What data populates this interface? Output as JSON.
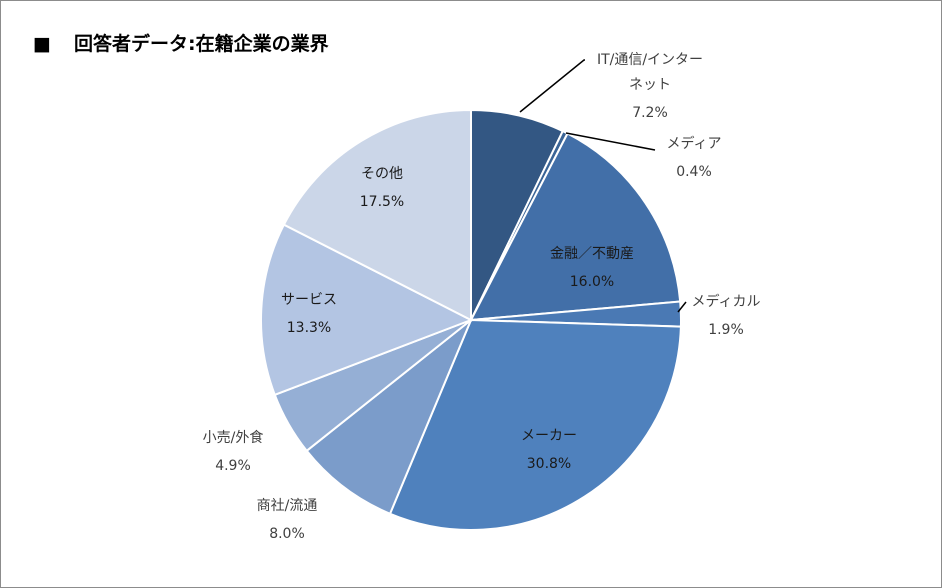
{
  "title_marker": "■",
  "title": "回答者データ:在籍企業の業界",
  "chart_data": {
    "type": "pie",
    "title": "回答者データ:在籍企業の業界",
    "unit": "%",
    "slices": [
      {
        "name": "IT/通信/インターネット",
        "label_lines": [
          "IT/通信/インター",
          "ネット"
        ],
        "value": 7.2,
        "value_label": "7.2%",
        "color": "#335783"
      },
      {
        "name": "メディア",
        "label_lines": [
          "メディア"
        ],
        "value": 0.4,
        "value_label": "0.4%",
        "color": "#3a6496"
      },
      {
        "name": "金融/不動産",
        "label_lines": [
          "金融／不動産"
        ],
        "value": 16.0,
        "value_label": "16.0%",
        "color": "#426fa8"
      },
      {
        "name": "メディカル",
        "label_lines": [
          "メディカル"
        ],
        "value": 1.9,
        "value_label": "1.9%",
        "color": "#4a79b4"
      },
      {
        "name": "メーカー",
        "label_lines": [
          "メーカー"
        ],
        "value": 30.8,
        "value_label": "30.8%",
        "color": "#4f81bd"
      },
      {
        "name": "商社/流通",
        "label_lines": [
          "商社/流通"
        ],
        "value": 8.0,
        "value_label": "8.0%",
        "color": "#7b9cca"
      },
      {
        "name": "小売/外食",
        "label_lines": [
          "小売/外食"
        ],
        "value": 4.9,
        "value_label": "4.9%",
        "color": "#95afd5"
      },
      {
        "name": "サービス",
        "label_lines": [
          "サービス"
        ],
        "value": 13.3,
        "value_label": "13.3%",
        "color": "#b3c5e3"
      },
      {
        "name": "その他",
        "label_lines": [
          "その他"
        ],
        "value": 17.5,
        "value_label": "17.5%",
        "color": "#cbd6e8"
      }
    ]
  }
}
